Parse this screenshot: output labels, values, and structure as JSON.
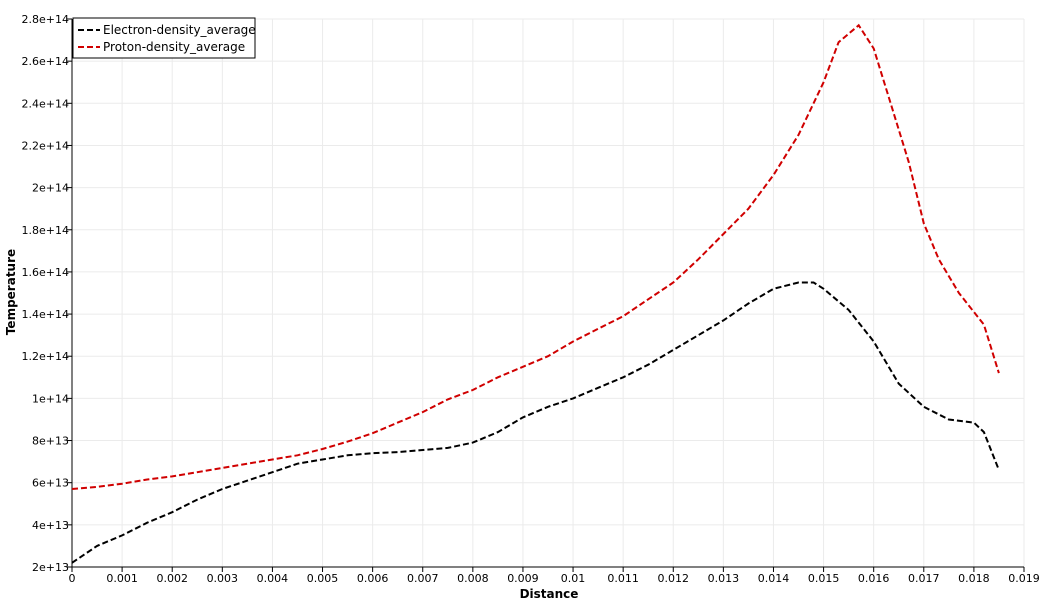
{
  "chart_data": {
    "type": "line",
    "title": "",
    "xlabel": "Distance",
    "ylabel": "Temperature",
    "xlim": [
      0,
      0.019
    ],
    "ylim": [
      20000000000000.0,
      280000000000000.0
    ],
    "grid": true,
    "legend_position": "top-left",
    "x_ticks": [
      "0",
      "0.001",
      "0.002",
      "0.003",
      "0.004",
      "0.005",
      "0.006",
      "0.007",
      "0.008",
      "0.009",
      "0.01",
      "0.011",
      "0.012",
      "0.013",
      "0.014",
      "0.015",
      "0.016",
      "0.017",
      "0.018",
      "0.019"
    ],
    "y_ticks": [
      "2e+13",
      "4e+13",
      "6e+13",
      "8e+13",
      "1e+14",
      "1.2e+14",
      "1.4e+14",
      "1.6e+14",
      "1.8e+14",
      "2e+14",
      "2.2e+14",
      "2.4e+14",
      "2.6e+14",
      "2.8e+14"
    ],
    "x_tick_values": [
      0,
      0.001,
      0.002,
      0.003,
      0.004,
      0.005,
      0.006,
      0.007,
      0.008,
      0.009,
      0.01,
      0.011,
      0.012,
      0.013,
      0.014,
      0.015,
      0.016,
      0.017,
      0.018,
      0.019
    ],
    "y_tick_values": [
      20000000000000.0,
      40000000000000.0,
      60000000000000.0,
      80000000000000.0,
      100000000000000.0,
      120000000000000.0,
      140000000000000.0,
      160000000000000.0,
      180000000000000.0,
      200000000000000.0,
      220000000000000.0,
      240000000000000.0,
      260000000000000.0,
      280000000000000.0
    ],
    "series": [
      {
        "name": "Electron-density_average",
        "color": "#000000",
        "x": [
          0,
          0.0005,
          0.001,
          0.0015,
          0.002,
          0.0025,
          0.003,
          0.0035,
          0.004,
          0.0045,
          0.005,
          0.0055,
          0.006,
          0.0065,
          0.007,
          0.0075,
          0.008,
          0.0085,
          0.009,
          0.0095,
          0.01,
          0.0105,
          0.011,
          0.0115,
          0.012,
          0.0125,
          0.013,
          0.0135,
          0.014,
          0.0145,
          0.0148,
          0.015,
          0.0155,
          0.016,
          0.0165,
          0.017,
          0.0175,
          0.018,
          0.0182,
          0.0185
        ],
        "y": [
          22000000000000.0,
          30000000000000.0,
          35000000000000.0,
          41000000000000.0,
          46000000000000.0,
          52000000000000.0,
          57000000000000.0,
          61000000000000.0,
          65000000000000.0,
          69000000000000.0,
          71000000000000.0,
          73000000000000.0,
          74000000000000.0,
          74500000000000.0,
          75500000000000.0,
          76500000000000.0,
          79000000000000.0,
          84000000000000.0,
          91000000000000.0,
          96000000000000.0,
          100000000000000.0,
          105000000000000.0,
          110000000000000.0,
          116000000000000.0,
          123000000000000.0,
          130000000000000.0,
          137000000000000.0,
          145000000000000.0,
          152000000000000.0,
          155000000000000.0,
          155000000000000.0,
          152000000000000.0,
          142000000000000.0,
          127000000000000.0,
          107000000000000.0,
          96000000000000.0,
          90000000000000.0,
          88500000000000.0,
          84000000000000.0,
          66000000000000.0
        ]
      },
      {
        "name": "Proton-density_average",
        "color": "#d00000",
        "x": [
          0,
          0.0005,
          0.001,
          0.0015,
          0.002,
          0.0025,
          0.003,
          0.0035,
          0.004,
          0.0045,
          0.005,
          0.0055,
          0.006,
          0.0065,
          0.007,
          0.0075,
          0.008,
          0.0085,
          0.009,
          0.0095,
          0.01,
          0.0105,
          0.011,
          0.0115,
          0.012,
          0.0125,
          0.013,
          0.0135,
          0.014,
          0.0145,
          0.015,
          0.0153,
          0.0157,
          0.016,
          0.0163,
          0.0167,
          0.017,
          0.0173,
          0.0177,
          0.018,
          0.0182,
          0.0185
        ],
        "y": [
          57000000000000.0,
          58000000000000.0,
          59500000000000.0,
          61500000000000.0,
          63000000000000.0,
          65000000000000.0,
          67000000000000.0,
          69000000000000.0,
          71000000000000.0,
          73000000000000.0,
          76000000000000.0,
          79500000000000.0,
          83500000000000.0,
          88500000000000.0,
          93500000000000.0,
          99500000000000.0,
          104000000000000.0,
          110000000000000.0,
          115000000000000.0,
          120000000000000.0,
          127000000000000.0,
          133000000000000.0,
          139000000000000.0,
          147000000000000.0,
          155000000000000.0,
          166000000000000.0,
          178000000000000.0,
          190000000000000.0,
          206000000000000.0,
          225000000000000.0,
          250000000000000.0,
          269000000000000.0,
          277000000000000.0,
          266000000000000.0,
          243000000000000.0,
          212000000000000.0,
          183000000000000.0,
          166000000000000.0,
          150000000000000.0,
          141000000000000.0,
          135000000000000.0,
          112000000000000.0
        ]
      }
    ]
  }
}
